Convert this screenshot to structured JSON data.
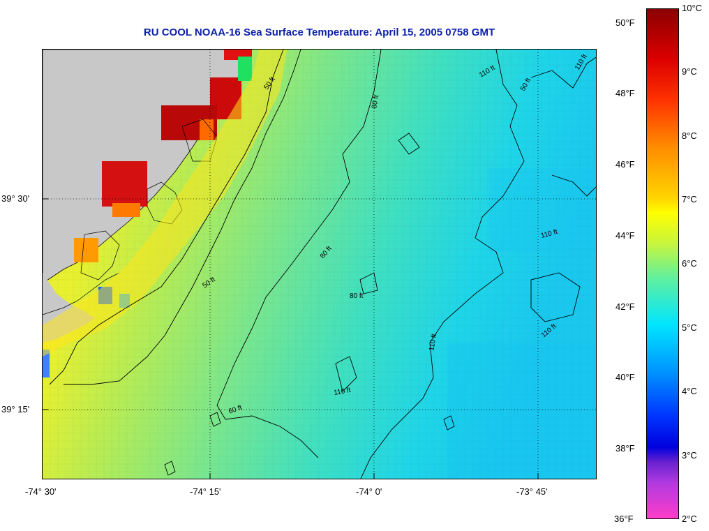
{
  "title": "RU COOL  NOAA-16  Sea Surface Temperature:  April 15, 2005 0758 GMT",
  "map": {
    "lat_labels": [
      "39° 30'",
      "39° 15'"
    ],
    "lon_labels": [
      "-74° 30'",
      "-74° 15'",
      "-74° 0'",
      "-73° 45'"
    ],
    "contour_labels": [
      "50 ft",
      "60 ft",
      "80 ft",
      "110 ft"
    ],
    "land_color": "#c8c8c8"
  },
  "colorbar": {
    "celsius_labels": [
      "10°C",
      "9°C",
      "8°C",
      "7°C",
      "6°C",
      "5°C",
      "4°C",
      "3°C",
      "2°C"
    ],
    "fahrenheit_labels": [
      "50°F",
      "48°F",
      "46°F",
      "44°F",
      "42°F",
      "40°F",
      "38°F",
      "36°F"
    ],
    "colors": [
      "#8b0000",
      "#dd0000",
      "#ff8c00",
      "#ffff00",
      "#5ef0a0",
      "#00e5ff",
      "#0033ff",
      "#6a22d0",
      "#ff3cc8"
    ]
  }
}
